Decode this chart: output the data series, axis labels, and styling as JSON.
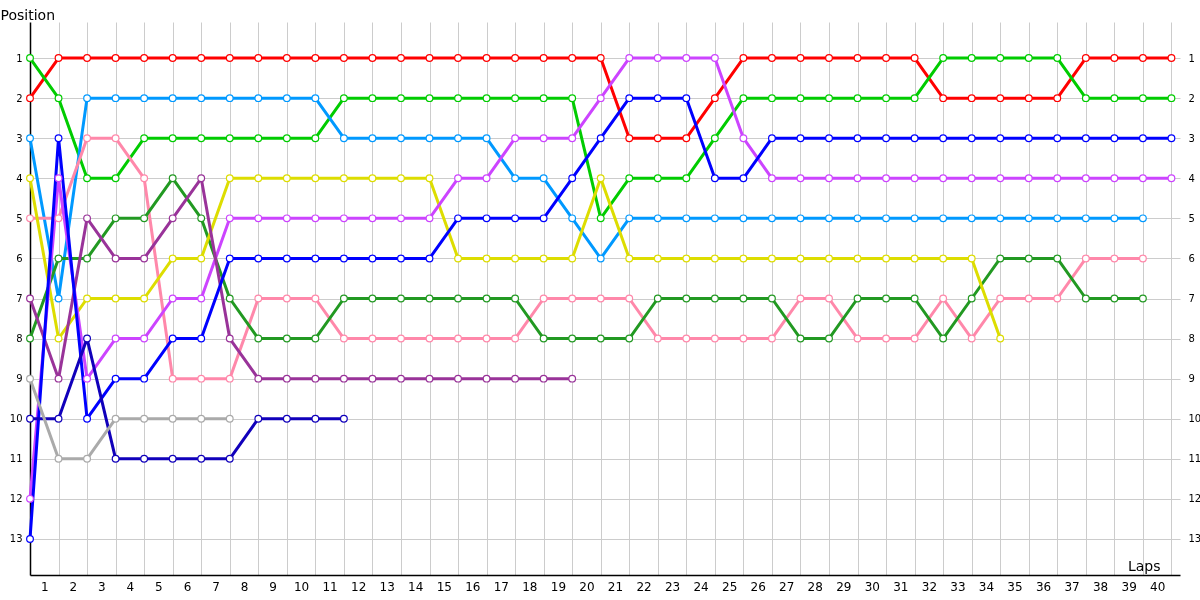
{
  "chart_data": {
    "type": "line",
    "xlabel": "Laps",
    "ylabel": "Position",
    "x": [
      0,
      1,
      2,
      3,
      4,
      5,
      6,
      7,
      8,
      9,
      10,
      11,
      12,
      13,
      14,
      15,
      16,
      17,
      18,
      19,
      20,
      21,
      22,
      23,
      24,
      25,
      26,
      27,
      28,
      29,
      30,
      31,
      32,
      33,
      34,
      35,
      36,
      37,
      38,
      39,
      40
    ],
    "series": [
      {
        "color": "#ff0000",
        "values": [
          2,
          1,
          1,
          1,
          1,
          1,
          1,
          1,
          1,
          1,
          1,
          1,
          1,
          1,
          1,
          1,
          1,
          1,
          1,
          1,
          1,
          3,
          3,
          3,
          2,
          1,
          1,
          1,
          1,
          1,
          1,
          1,
          2,
          2,
          2,
          2,
          2,
          1,
          1,
          1,
          1
        ]
      },
      {
        "color": "#00cc00",
        "values": [
          1,
          2,
          4,
          4,
          3,
          3,
          3,
          3,
          3,
          3,
          3,
          2,
          2,
          2,
          2,
          2,
          2,
          2,
          2,
          2,
          5,
          4,
          4,
          4,
          3,
          2,
          2,
          2,
          2,
          2,
          2,
          2,
          1,
          1,
          1,
          1,
          1,
          2,
          2,
          2,
          2
        ]
      },
      {
        "color": "#0099ff",
        "values": [
          3,
          7,
          2,
          2,
          2,
          2,
          2,
          2,
          2,
          2,
          2,
          3,
          3,
          3,
          3,
          3,
          3,
          4,
          4,
          5,
          6,
          5,
          5,
          5,
          5,
          5,
          5,
          5,
          5,
          5,
          5,
          5,
          5,
          5,
          5,
          5,
          5,
          5,
          5,
          5,
          null
        ]
      },
      {
        "color": "#ff88aa",
        "values": [
          5,
          5,
          3,
          3,
          4,
          9,
          9,
          9,
          7,
          7,
          7,
          8,
          8,
          8,
          8,
          8,
          8,
          8,
          7,
          7,
          7,
          7,
          8,
          8,
          8,
          8,
          8,
          7,
          7,
          8,
          8,
          8,
          7,
          8,
          7,
          7,
          7,
          6,
          6,
          6,
          null
        ]
      },
      {
        "color": "#229922",
        "values": [
          8,
          6,
          6,
          5,
          5,
          4,
          5,
          7,
          8,
          8,
          8,
          7,
          7,
          7,
          7,
          7,
          7,
          7,
          8,
          8,
          8,
          8,
          7,
          7,
          7,
          7,
          7,
          8,
          8,
          7,
          7,
          7,
          8,
          7,
          6,
          6,
          6,
          7,
          7,
          7,
          null
        ]
      },
      {
        "color": "#dddd00",
        "values": [
          4,
          8,
          7,
          7,
          7,
          6,
          6,
          4,
          4,
          4,
          4,
          4,
          4,
          4,
          4,
          6,
          6,
          6,
          6,
          6,
          4,
          6,
          6,
          6,
          6,
          6,
          6,
          6,
          6,
          6,
          6,
          6,
          6,
          6,
          8,
          null,
          null,
          null,
          null,
          null,
          null
        ]
      },
      {
        "color": "#cc44ff",
        "values": [
          12,
          4,
          9,
          8,
          8,
          7,
          7,
          5,
          5,
          5,
          5,
          5,
          5,
          5,
          5,
          4,
          4,
          3,
          3,
          3,
          2,
          1,
          1,
          1,
          1,
          3,
          4,
          4,
          4,
          4,
          4,
          4,
          4,
          4,
          4,
          4,
          4,
          4,
          4,
          4,
          4
        ]
      },
      {
        "color": "#993399",
        "values": [
          7,
          9,
          5,
          6,
          6,
          5,
          4,
          8,
          9,
          9,
          9,
          9,
          9,
          9,
          9,
          9,
          9,
          9,
          9,
          9,
          null,
          null,
          null,
          null,
          null,
          null,
          null,
          null,
          null,
          null,
          null,
          null,
          null,
          null,
          null,
          null,
          null,
          null,
          null,
          null,
          null
        ]
      },
      {
        "color": "#0000ff",
        "values": [
          13,
          3,
          10,
          9,
          9,
          8,
          8,
          6,
          6,
          6,
          6,
          6,
          6,
          6,
          6,
          5,
          5,
          5,
          5,
          4,
          3,
          2,
          2,
          2,
          4,
          4,
          3,
          3,
          3,
          3,
          3,
          3,
          3,
          3,
          3,
          3,
          3,
          3,
          3,
          3,
          3
        ]
      },
      {
        "color": "#1100bb",
        "values": [
          10,
          10,
          8,
          11,
          11,
          11,
          11,
          11,
          10,
          10,
          10,
          10,
          null,
          null,
          null,
          null,
          null,
          null,
          null,
          null,
          null,
          null,
          null,
          null,
          null,
          null,
          null,
          null,
          null,
          null,
          null,
          null,
          null,
          null,
          null,
          null,
          null,
          null,
          null,
          null,
          null
        ]
      },
      {
        "color": "#aaaaaa",
        "values": [
          9,
          11,
          11,
          10,
          10,
          10,
          10,
          10,
          null,
          null,
          null,
          null,
          null,
          null,
          null,
          null,
          null,
          null,
          null,
          null,
          null,
          null,
          null,
          null,
          null,
          null,
          null,
          null,
          null,
          null,
          null,
          null,
          null,
          null,
          null,
          null,
          null,
          null,
          null,
          null,
          null
        ]
      }
    ],
    "xlim": [
      0,
      40.3
    ],
    "xticks": [
      {
        "value": 0.5,
        "label": "1"
      },
      {
        "value": 1.5,
        "label": "2"
      },
      {
        "value": 2.5,
        "label": "3"
      },
      {
        "value": 3.5,
        "label": "4"
      },
      {
        "value": 4.5,
        "label": "5"
      },
      {
        "value": 5.5,
        "label": "6"
      },
      {
        "value": 6.5,
        "label": "7"
      },
      {
        "value": 7.5,
        "label": "8"
      },
      {
        "value": 8.5,
        "label": "9"
      },
      {
        "value": 9.5,
        "label": "10"
      },
      {
        "value": 10.5,
        "label": "11"
      },
      {
        "value": 11.5,
        "label": "12"
      },
      {
        "value": 12.5,
        "label": "13"
      },
      {
        "value": 13.5,
        "label": "14"
      },
      {
        "value": 14.5,
        "label": "15"
      },
      {
        "value": 15.5,
        "label": "16"
      },
      {
        "value": 16.5,
        "label": "17"
      },
      {
        "value": 17.5,
        "label": "18"
      },
      {
        "value": 18.5,
        "label": "19"
      },
      {
        "value": 19.5,
        "label": "20"
      },
      {
        "value": 20.5,
        "label": "21"
      },
      {
        "value": 21.5,
        "label": "22"
      },
      {
        "value": 22.5,
        "label": "23"
      },
      {
        "value": 23.5,
        "label": "24"
      },
      {
        "value": 24.5,
        "label": "25"
      },
      {
        "value": 25.5,
        "label": "26"
      },
      {
        "value": 26.5,
        "label": "27"
      },
      {
        "value": 27.5,
        "label": "28"
      },
      {
        "value": 28.5,
        "label": "29"
      },
      {
        "value": 29.5,
        "label": "30"
      },
      {
        "value": 30.5,
        "label": "31"
      },
      {
        "value": 31.5,
        "label": "32"
      },
      {
        "value": 32.5,
        "label": "33"
      },
      {
        "value": 33.5,
        "label": "34"
      },
      {
        "value": 34.5,
        "label": "35"
      },
      {
        "value": 35.5,
        "label": "36"
      },
      {
        "value": 36.5,
        "label": "37"
      },
      {
        "value": 37.5,
        "label": "38"
      },
      {
        "value": 38.5,
        "label": "39"
      },
      {
        "value": 39.5,
        "label": "40"
      },
      {
        "value": 1,
        "label": null
      },
      {
        "value": 2,
        "label": null
      },
      {
        "value": 3,
        "label": null
      },
      {
        "value": 4,
        "label": null
      },
      {
        "value": 5,
        "label": null
      },
      {
        "value": 6,
        "label": null
      },
      {
        "value": 7,
        "label": null
      },
      {
        "value": 8,
        "label": null
      },
      {
        "value": 9,
        "label": null
      },
      {
        "value": 10,
        "label": null
      },
      {
        "value": 11,
        "label": null
      },
      {
        "value": 12,
        "label": null
      },
      {
        "value": 13,
        "label": null
      },
      {
        "value": 14,
        "label": null
      },
      {
        "value": 15,
        "label": null
      },
      {
        "value": 16,
        "label": null
      },
      {
        "value": 17,
        "label": null
      },
      {
        "value": 18,
        "label": null
      },
      {
        "value": 19,
        "label": null
      },
      {
        "value": 20,
        "label": null
      },
      {
        "value": 21,
        "label": null
      },
      {
        "value": 22,
        "label": null
      },
      {
        "value": 23,
        "label": null
      },
      {
        "value": 24,
        "label": null
      },
      {
        "value": 25,
        "label": null
      },
      {
        "value": 26,
        "label": null
      },
      {
        "value": 27,
        "label": null
      },
      {
        "value": 28,
        "label": null
      },
      {
        "value": 29,
        "label": null
      },
      {
        "value": 30,
        "label": null
      },
      {
        "value": 31,
        "label": null
      },
      {
        "value": 32,
        "label": null
      },
      {
        "value": 33,
        "label": null
      },
      {
        "value": 34,
        "label": null
      },
      {
        "value": 35,
        "label": null
      },
      {
        "value": 36,
        "label": null
      },
      {
        "value": 37,
        "label": null
      },
      {
        "value": 38,
        "label": null
      },
      {
        "value": 39,
        "label": null
      },
      {
        "value": 40,
        "label": null
      }
    ],
    "ylim": [
      13.9,
      0.1
    ],
    "yticks": [
      1,
      2,
      3,
      4,
      5,
      6,
      7,
      8,
      9,
      10,
      11,
      12,
      13
    ],
    "y2lim": [
      13.9,
      0.1
    ],
    "y2ticks": [
      1,
      2,
      3,
      4,
      5,
      6,
      7,
      8,
      9,
      10,
      11,
      12,
      13
    ],
    "grid": true,
    "marker": "circle",
    "line_style": "solid",
    "legend": false
  }
}
